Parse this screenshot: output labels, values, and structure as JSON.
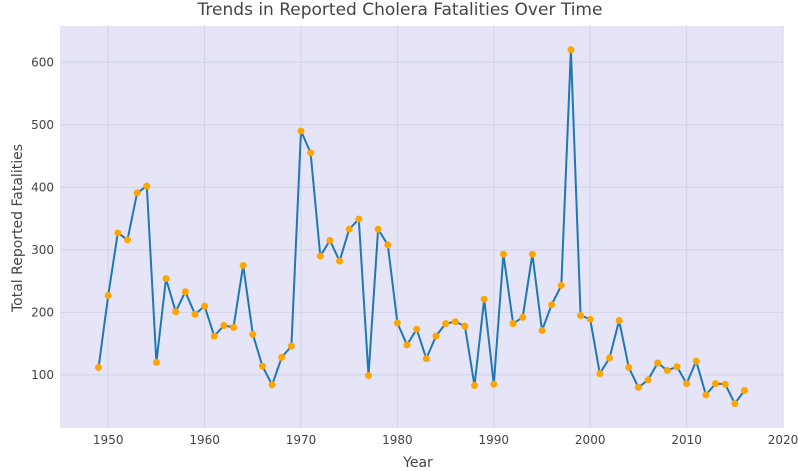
{
  "chart_data": {
    "type": "line",
    "title": "Trends in Reported Cholera Fatalities Over Time",
    "xlabel": "Year",
    "ylabel": "Total Reported Fatalities",
    "xlim": [
      1945,
      2020
    ],
    "ylim": [
      15,
      658
    ],
    "xticks": [
      1950,
      1960,
      1970,
      1980,
      1990,
      2000,
      2010,
      2020
    ],
    "yticks": [
      100,
      200,
      300,
      400,
      500,
      600
    ],
    "grid": true,
    "legend": "none",
    "colors": {
      "line": "#1f77b4",
      "marker": "#ffa500",
      "plot_bg": "#e5e5f7",
      "grid": "#d2d3ea",
      "text": "#444444"
    },
    "series": [
      {
        "x": [
          1949,
          1950,
          1951,
          1952,
          1953,
          1954,
          1955,
          1956,
          1957,
          1958,
          1959,
          1960,
          1961,
          1962,
          1963,
          1964,
          1965,
          1966,
          1967,
          1968,
          1969,
          1970,
          1971,
          1972,
          1973,
          1974,
          1975,
          1976,
          1977,
          1978,
          1979,
          1980,
          1981,
          1982,
          1983,
          1984,
          1985,
          1986,
          1987,
          1988,
          1989,
          1990,
          1991,
          1992,
          1993,
          1994,
          1995,
          1996,
          1997,
          1998,
          1999,
          2000,
          2001,
          2002,
          2003,
          2004,
          2005,
          2006,
          2007,
          2008,
          2009,
          2010,
          2011,
          2012,
          2013,
          2014,
          2015,
          2016
        ],
        "y": [
          112,
          227,
          327,
          316,
          391,
          402,
          120,
          254,
          201,
          233,
          197,
          210,
          162,
          179,
          176,
          275,
          165,
          114,
          84,
          128,
          146,
          490,
          455,
          290,
          315,
          282,
          333,
          349,
          99,
          333,
          308,
          183,
          148,
          173,
          126,
          162,
          182,
          185,
          178,
          83,
          221,
          85,
          293,
          182,
          192,
          293,
          171,
          212,
          243,
          620,
          195,
          189,
          102,
          127,
          187,
          112,
          80,
          92,
          119,
          107,
          113,
          86,
          122,
          68,
          86,
          85,
          54,
          75
        ]
      }
    ]
  }
}
